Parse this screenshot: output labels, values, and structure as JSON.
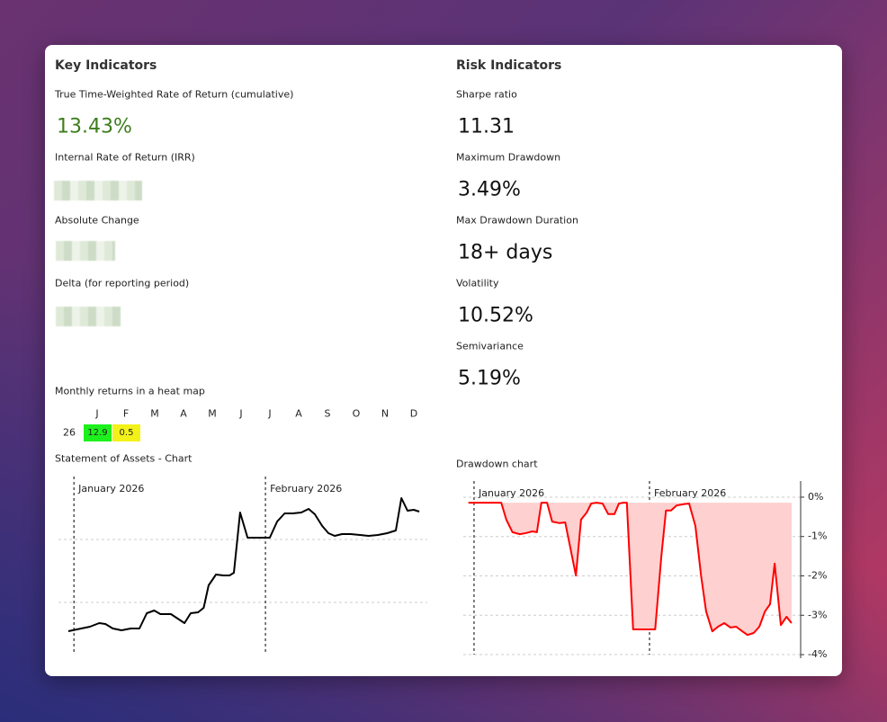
{
  "key_indicators": {
    "title": "Key Indicators",
    "items": [
      {
        "label": "True Time-Weighted Rate of Return (cumulative)",
        "value": "13.43%"
      },
      {
        "label": "Internal Rate of Return (IRR)"
      },
      {
        "label": "Absolute Change"
      },
      {
        "label": "Delta (for reporting period)"
      }
    ]
  },
  "risk_indicators": {
    "title": "Risk Indicators",
    "items": [
      {
        "label": "Sharpe ratio",
        "value": "11.31"
      },
      {
        "label": "Maximum Drawdown",
        "value": "3.49%"
      },
      {
        "label": "Max Drawdown Duration",
        "value": "18+ days"
      },
      {
        "label": "Volatility",
        "value": "10.52%"
      },
      {
        "label": "Semivariance",
        "value": "5.19%"
      }
    ]
  },
  "heatmap": {
    "title": "Monthly returns in a heat map",
    "months": [
      "J",
      "F",
      "M",
      "A",
      "M",
      "J",
      "J",
      "A",
      "S",
      "O",
      "N",
      "D"
    ],
    "rows": [
      {
        "year": "26",
        "values": [
          "12.9",
          "0.5"
        ],
        "colors": [
          "#1ef01e",
          "#f2f21a"
        ]
      }
    ]
  },
  "chart_data": [
    {
      "type": "line",
      "title": "Statement of Assets - Chart",
      "color": "#000000",
      "x": [
        -0.9,
        1.2,
        2.6,
        4.1,
        5.1,
        6.3,
        7.7,
        9.2,
        10.6,
        11.8,
        13.0,
        14.0,
        15.7,
        17.9,
        18.9,
        20.1,
        21.0,
        21.8,
        23.0,
        24.2,
        25.2,
        25.9,
        26.9,
        28.1,
        29.5,
        31.7,
        32.9,
        34.1,
        35.4,
        36.8,
        38.0,
        39.0,
        40.2,
        41.2,
        42.2,
        43.4,
        44.8,
        46.3,
        47.7,
        49.2,
        50.7,
        52.1,
        53.0,
        54.0,
        55.0,
        55.9
      ],
      "values": [
        14,
        15.5,
        16.5,
        18.5,
        18,
        15.5,
        14.5,
        15.5,
        15.5,
        24,
        25.5,
        23.5,
        23.5,
        18.5,
        24,
        24.5,
        27,
        39.5,
        45.5,
        45,
        45,
        46.5,
        80,
        66,
        66,
        66,
        75,
        79.5,
        79.5,
        80,
        82,
        79,
        72.5,
        68.5,
        67,
        68,
        68,
        67.5,
        67,
        67.5,
        68.5,
        70,
        88,
        81,
        81.5,
        80.5
      ],
      "xlim": [
        -2.5,
        57.2
      ],
      "ylim": [
        0,
        100
      ],
      "yticks": [
        30,
        65
      ],
      "grid": true,
      "annotations": [
        {
          "x": 0,
          "text": "January 2026"
        },
        {
          "x": 31,
          "text": "February 2026"
        }
      ]
    },
    {
      "type": "area",
      "title": "Drawdown chart",
      "color": "#ff0000",
      "fill": "#ffd0d0",
      "x": [
        -1.0,
        0,
        2.1,
        4.8,
        5.7,
        6.8,
        8.1,
        9.2,
        10.3,
        11.1,
        11.9,
        12.9,
        13.8,
        15.1,
        16.1,
        18.0,
        18.9,
        19.9,
        20.7,
        21.6,
        22.7,
        23.7,
        24.8,
        25.6,
        26.4,
        27.0,
        28.1,
        29.4,
        31.0,
        32.0,
        33.1,
        33.9,
        34.8,
        35.8,
        37.0,
        38.0,
        39.1,
        40.1,
        41.0,
        42.1,
        43.1,
        44.2,
        45.3,
        46.3,
        47.4,
        48.3,
        49.4,
        50.4,
        51.4,
        52.3,
        53.1,
        54.2,
        55.2,
        56.1
      ],
      "values": [
        -0.14,
        -0.14,
        -0.14,
        -0.14,
        -0.57,
        -0.89,
        -0.94,
        -0.91,
        -0.87,
        -0.89,
        -0.14,
        -0.14,
        -0.62,
        -0.66,
        -0.64,
        -1.99,
        -0.57,
        -0.39,
        -0.16,
        -0.14,
        -0.16,
        -0.43,
        -0.43,
        -0.16,
        -0.14,
        -0.14,
        -3.36,
        -3.36,
        -3.36,
        -3.36,
        -1.49,
        -0.34,
        -0.34,
        -0.21,
        -0.18,
        -0.16,
        -0.73,
        -1.99,
        -2.9,
        -3.41,
        -3.29,
        -3.2,
        -3.31,
        -3.29,
        -3.41,
        -3.5,
        -3.45,
        -3.29,
        -2.9,
        -2.72,
        -1.69,
        -3.25,
        -3.04,
        -3.2
      ],
      "xlim": [
        -1.9,
        57.7
      ],
      "ylim": [
        -4.09,
        0.41
      ],
      "yticks": [
        {
          "value": 0,
          "label": "0%"
        },
        {
          "value": -1,
          "label": "-1%"
        },
        {
          "value": -2,
          "label": "-2%"
        },
        {
          "value": -3,
          "label": "-3%"
        },
        {
          "value": -4,
          "label": "-4%"
        }
      ],
      "grid": true,
      "annotations": [
        {
          "x": 0,
          "text": "January 2026"
        },
        {
          "x": 31,
          "text": "February 2026"
        }
      ]
    }
  ]
}
